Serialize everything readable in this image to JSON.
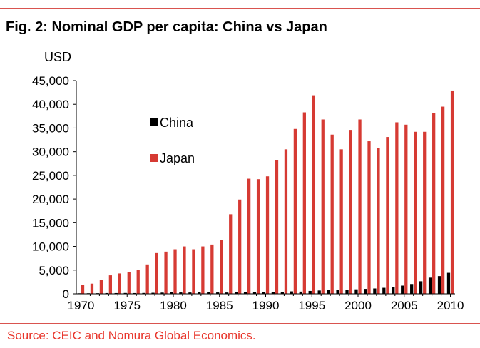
{
  "header": {
    "title": "Fig. 2: Nominal GDP per capita: China vs Japan"
  },
  "footer": {
    "source": "Source: CEIC and Nomura Global Economics."
  },
  "chart_data": {
    "type": "bar",
    "title": "Fig. 2: Nominal GDP per capita: China vs Japan",
    "ylabel": "USD",
    "xlabel": "",
    "ylim": [
      0,
      45000
    ],
    "yticks": [
      0,
      5000,
      10000,
      15000,
      20000,
      25000,
      30000,
      35000,
      40000,
      45000
    ],
    "ytick_labels": [
      "0",
      "5,000",
      "10,000",
      "15,000",
      "20,000",
      "25,000",
      "30,000",
      "35,000",
      "40,000",
      "45,000"
    ],
    "xtick_labels": [
      "1970",
      "1975",
      "1980",
      "1985",
      "1990",
      "1995",
      "2000",
      "2005",
      "2010"
    ],
    "grid": false,
    "legend": "upper-left",
    "categories": [
      1970,
      1971,
      1972,
      1973,
      1974,
      1975,
      1976,
      1977,
      1978,
      1979,
      1980,
      1981,
      1982,
      1983,
      1984,
      1985,
      1986,
      1987,
      1988,
      1989,
      1990,
      1991,
      1992,
      1993,
      1994,
      1995,
      1996,
      1997,
      1998,
      1999,
      2000,
      2001,
      2002,
      2003,
      2004,
      2005,
      2006,
      2007,
      2008,
      2009,
      2010
    ],
    "series": [
      {
        "name": "China",
        "color": "#000000",
        "values": [
          110,
          120,
          130,
          160,
          160,
          180,
          160,
          180,
          220,
          260,
          310,
          290,
          280,
          300,
          300,
          290,
          280,
          300,
          370,
          400,
          340,
          350,
          420,
          520,
          470,
          610,
          700,
          780,
          820,
          860,
          950,
          1040,
          1130,
          1270,
          1490,
          1730,
          2070,
          2650,
          3410,
          3740,
          4430
        ]
      },
      {
        "name": "Japan",
        "color": "#d63a33",
        "values": [
          1950,
          2150,
          2900,
          3900,
          4300,
          4600,
          5100,
          6200,
          8600,
          8900,
          9400,
          10000,
          9400,
          10000,
          10400,
          11400,
          16800,
          19900,
          24300,
          24200,
          24800,
          28200,
          30500,
          34800,
          38300,
          41900,
          36800,
          33600,
          30500,
          34600,
          36800,
          32200,
          30800,
          33100,
          36200,
          35700,
          34200,
          34200,
          38200,
          39500,
          42900
        ]
      }
    ]
  }
}
